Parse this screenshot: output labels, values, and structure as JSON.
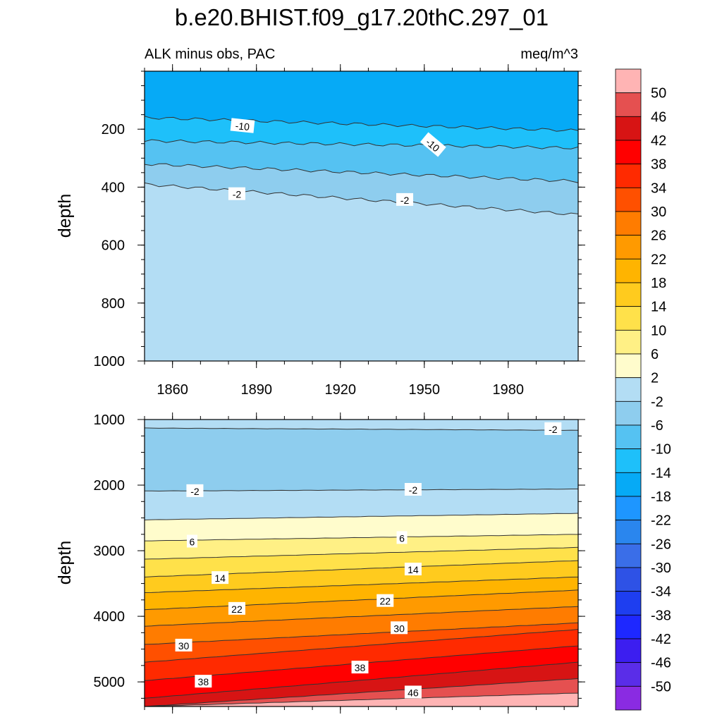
{
  "figure": {
    "title": "b.e20.BHIST.f09_g17.20thC.297_01",
    "left_string": "ALK minus obs, PAC",
    "right_string": "meq/m^3"
  },
  "colorbar": {
    "levels": [
      -50,
      -46,
      -42,
      -38,
      -34,
      -30,
      -26,
      -22,
      -18,
      -14,
      -10,
      -6,
      -2,
      2,
      6,
      10,
      14,
      18,
      22,
      26,
      30,
      34,
      38,
      42,
      46,
      50
    ],
    "colors": [
      "#8a2be2",
      "#5a2de8",
      "#3c1ef0",
      "#1e28ff",
      "#1e3ef0",
      "#2e52e6",
      "#3a6ee8",
      "#2a86ee",
      "#1e96ff",
      "#06aaf6",
      "#1ec0fa",
      "#55c2f2",
      "#8ecdee",
      "#b3ddf4",
      "#fffccc",
      "#fff085",
      "#ffe14a",
      "#ffcb1e",
      "#ffb400",
      "#ff9a00",
      "#ff7c00",
      "#ff5000",
      "#ff2a00",
      "#ff0000",
      "#d71414",
      "#e55050",
      "#ffb4b4"
    ],
    "tick_labels": [
      "-50",
      "-46",
      "-42",
      "-38",
      "-34",
      "-30",
      "-26",
      "-22",
      "-18",
      "-14",
      "-10",
      "-6",
      "-2",
      "2",
      "6",
      "10",
      "14",
      "18",
      "22",
      "26",
      "30",
      "34",
      "38",
      "42",
      "46",
      "50"
    ]
  },
  "chart_data": [
    {
      "type": "contour",
      "panel": "upper",
      "title": "ALK minus obs, PAC",
      "units": "meq/m^3",
      "ylabel": "depth",
      "xlabel": "",
      "xlim": [
        1850,
        2005
      ],
      "ylim": [
        1000,
        0
      ],
      "x_tick_labels": [
        "1860",
        "1890",
        "1920",
        "1950",
        "1980"
      ],
      "x_ticks": [
        1860,
        1890,
        1920,
        1950,
        1980
      ],
      "y_tick_labels": [
        "200",
        "400",
        "600",
        "800",
        "1000"
      ],
      "y_ticks": [
        200,
        400,
        600,
        800,
        1000
      ],
      "contours": [
        {
          "level": -14,
          "depth_start": 160,
          "depth_end": 205
        },
        {
          "level": -10,
          "depth_start": 240,
          "depth_end": 265
        },
        {
          "level": -6,
          "depth_start": 320,
          "depth_end": 380
        },
        {
          "level": -2,
          "depth_start": 390,
          "depth_end": 495
        }
      ],
      "contour_labels": [
        {
          "text": "-10",
          "x": 1885,
          "depth": 190,
          "rotate": 6
        },
        {
          "text": "-10",
          "x": 1953,
          "depth": 255,
          "rotate": 40
        },
        {
          "text": "-2",
          "x": 1883,
          "depth": 425,
          "rotate": 0
        },
        {
          "text": "-2",
          "x": 1943,
          "depth": 445,
          "rotate": 0
        }
      ]
    },
    {
      "type": "contour",
      "panel": "lower",
      "title": "",
      "ylabel": "depth",
      "xlabel": "",
      "xlim": [
        1850,
        2005
      ],
      "ylim": [
        5375,
        1000
      ],
      "x_ticks": [
        1860,
        1890,
        1920,
        1950,
        1980
      ],
      "y_tick_labels": [
        "1000",
        "2000",
        "3000",
        "4000",
        "5000"
      ],
      "y_ticks": [
        1000,
        2000,
        3000,
        4000,
        5000
      ],
      "contours": [
        {
          "level": -2,
          "depth_start": 1130,
          "depth_end": 1165
        },
        {
          "level": -2,
          "depth_start": 2090,
          "depth_end": 2060
        },
        {
          "level": 2,
          "depth_start": 2530,
          "depth_end": 2430
        },
        {
          "level": 6,
          "depth_start": 2850,
          "depth_end": 2750
        },
        {
          "level": 10,
          "depth_start": 3130,
          "depth_end": 2950
        },
        {
          "level": 14,
          "depth_start": 3400,
          "depth_end": 3150
        },
        {
          "level": 18,
          "depth_start": 3640,
          "depth_end": 3400
        },
        {
          "level": 22,
          "depth_start": 3900,
          "depth_end": 3600
        },
        {
          "level": 26,
          "depth_start": 4150,
          "depth_end": 3850
        },
        {
          "level": 30,
          "depth_start": 4430,
          "depth_end": 4100
        },
        {
          "level": 34,
          "depth_start": 4700,
          "depth_end": 4200
        },
        {
          "level": 38,
          "depth_start": 4980,
          "depth_end": 4450
        },
        {
          "level": 42,
          "depth_start": 5250,
          "depth_end": 4700
        },
        {
          "level": 46,
          "depth_start": 5375,
          "depth_end": 4950
        },
        {
          "level": 50,
          "depth_start": 5375,
          "depth_end": 5170
        }
      ],
      "contour_labels": [
        {
          "text": "-2",
          "x": 1996,
          "depth": 1150
        },
        {
          "text": "-2",
          "x": 1868,
          "depth": 2095
        },
        {
          "text": "-2",
          "x": 1946,
          "depth": 2075
        },
        {
          "text": "6",
          "x": 1867,
          "depth": 2865
        },
        {
          "text": "6",
          "x": 1942,
          "depth": 2810
        },
        {
          "text": "14",
          "x": 1877,
          "depth": 3420
        },
        {
          "text": "14",
          "x": 1946,
          "depth": 3290
        },
        {
          "text": "22",
          "x": 1883,
          "depth": 3890
        },
        {
          "text": "22",
          "x": 1936,
          "depth": 3770
        },
        {
          "text": "30",
          "x": 1864,
          "depth": 4450
        },
        {
          "text": "30",
          "x": 1941,
          "depth": 4185
        },
        {
          "text": "38",
          "x": 1871,
          "depth": 5000
        },
        {
          "text": "38",
          "x": 1927,
          "depth": 4785
        },
        {
          "text": "46",
          "x": 1946,
          "depth": 5165
        }
      ]
    }
  ]
}
